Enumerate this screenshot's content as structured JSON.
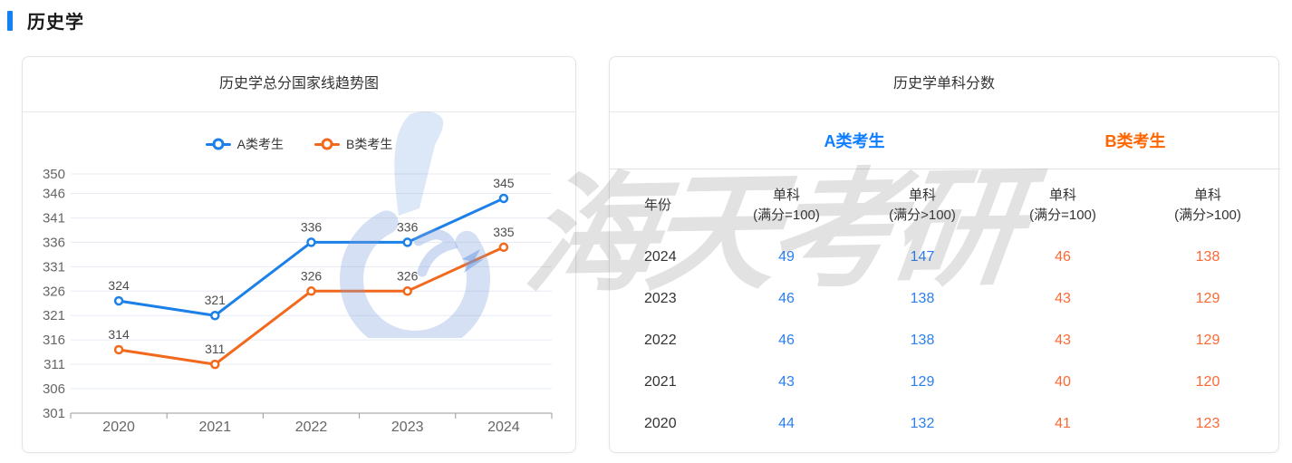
{
  "page": {
    "title": "历史学"
  },
  "colors": {
    "accent_blue": "#1580f0",
    "header_blue": "#0f7dff",
    "header_orange": "#ff6600",
    "line_blue": "#1b80e8",
    "line_orange": "#f2691d",
    "cell_blue": "#2b7ff0",
    "cell_orange": "#fb6a35"
  },
  "chart_data": {
    "type": "line",
    "title": "历史学总分国家线趋势图",
    "categories": [
      "2020",
      "2021",
      "2022",
      "2023",
      "2024"
    ],
    "series": [
      {
        "name": "A类考生",
        "color": "#1b80e8",
        "values": [
          324,
          321,
          336,
          336,
          345
        ]
      },
      {
        "name": "B类考生",
        "color": "#f2691d",
        "values": [
          314,
          311,
          326,
          326,
          335
        ]
      }
    ],
    "ylim": [
      301,
      350
    ],
    "yticks": [
      301,
      306,
      311,
      316,
      321,
      326,
      331,
      336,
      341,
      346,
      350
    ],
    "grid": true,
    "legend_position": "top",
    "xlabel": "",
    "ylabel": ""
  },
  "table_panel": {
    "title": "历史学单科分数",
    "groups": [
      {
        "label": "A类考生"
      },
      {
        "label": "B类考生"
      }
    ],
    "columns": [
      {
        "title": "年份",
        "sub": ""
      },
      {
        "title": "单科",
        "sub": "(满分=100)"
      },
      {
        "title": "单科",
        "sub": "(满分>100)"
      },
      {
        "title": "单科",
        "sub": "(满分=100)"
      },
      {
        "title": "单科",
        "sub": "(满分>100)"
      }
    ],
    "rows": [
      {
        "year": "2024",
        "values": [
          "49",
          "147",
          "46",
          "138"
        ]
      },
      {
        "year": "2023",
        "values": [
          "46",
          "138",
          "43",
          "129"
        ]
      },
      {
        "year": "2022",
        "values": [
          "46",
          "138",
          "43",
          "129"
        ]
      },
      {
        "year": "2021",
        "values": [
          "43",
          "129",
          "40",
          "120"
        ]
      },
      {
        "year": "2020",
        "values": [
          "44",
          "132",
          "41",
          "123"
        ]
      }
    ]
  },
  "watermark": {
    "text": "海天考研"
  }
}
